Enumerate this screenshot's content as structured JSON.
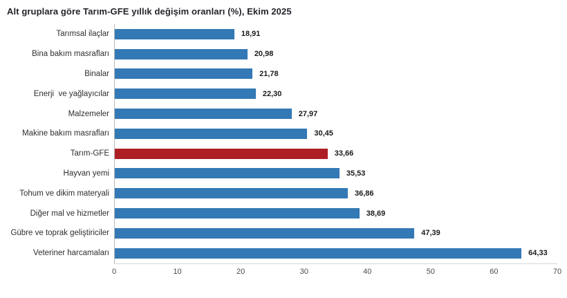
{
  "title": "Alt gruplara göre Tarım-GFE yıllık değişim oranları (%), Ekim 2025",
  "colors": {
    "bar": "#3379B5",
    "highlight": "#AD1F23",
    "axis_line": "#b8b8b8",
    "baseline": "#d6d6d6",
    "title_text": "#23232b",
    "label_text": "#2e2e2e",
    "value_text": "#1a1a1a",
    "tick_text": "#4a4a4a"
  },
  "chart_data": {
    "type": "bar",
    "orientation": "horizontal",
    "title": "Alt gruplara göre Tarım-GFE yıllık değişim oranları (%), Ekim 2025",
    "categories": [
      "Tarımsal ilaçlar",
      "Bina bakım masrafları",
      "Binalar",
      "Enerji  ve yağlayıcılar",
      "Malzemeler",
      "Makine bakım masrafları",
      "Tarım-GFE",
      "Hayvan yemi",
      "Tohum ve dikim materyali",
      "Diğer mal ve hizmetler",
      "Gübre ve toprak geliştiriciler",
      "Veteriner harcamaları"
    ],
    "values": [
      18.91,
      20.98,
      21.78,
      22.3,
      27.97,
      30.45,
      33.66,
      35.53,
      36.86,
      38.69,
      47.39,
      64.33
    ],
    "value_labels": [
      "18,91",
      "20,98",
      "21,78",
      "22,30",
      "27,97",
      "30,45",
      "33,66",
      "35,53",
      "36,86",
      "38,69",
      "47,39",
      "64,33"
    ],
    "highlight_category": "Tarım-GFE",
    "xlabel": "",
    "ylabel": "",
    "xlim": [
      0,
      70
    ],
    "xticks": [
      0,
      10,
      20,
      30,
      40,
      50,
      60,
      70
    ],
    "grid": false,
    "legend": false
  }
}
